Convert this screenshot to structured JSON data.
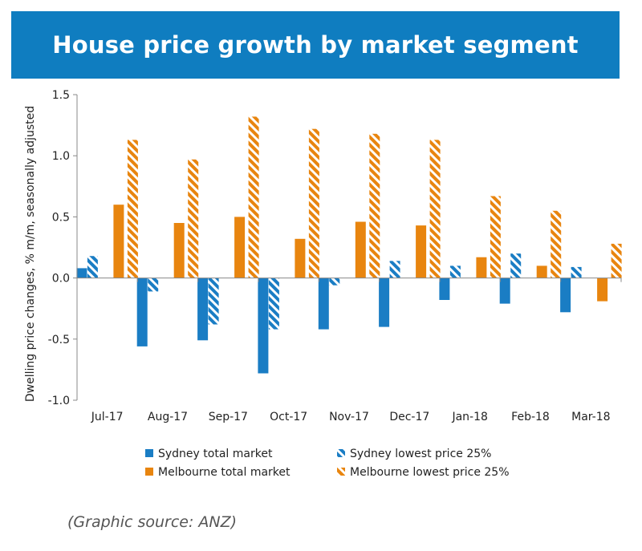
{
  "chart_data": {
    "type": "bar",
    "title": "House price growth by market segment",
    "ylabel": "Dwelling price changes, % m/m, seasonally adjusted",
    "xlabel": "",
    "ylim": [
      -1.0,
      1.5
    ],
    "yticks": [
      1.5,
      1.0,
      0.5,
      0.0,
      -0.5,
      -1.0
    ],
    "ytick_labels": [
      "1.5",
      "1.0",
      "0.5",
      "0.0",
      "-0.5",
      "-1.0"
    ],
    "grid": false,
    "legend_position": "bottom",
    "categories": [
      "Jul-17",
      "Aug-17",
      "Sep-17",
      "Oct-17",
      "Nov-17",
      "Dec-17",
      "Jan-18",
      "Feb-18",
      "Mar-18"
    ],
    "series": [
      {
        "name": "Sydney total market",
        "color": "#1a7dc4",
        "pattern": "solid",
        "values": [
          0.08,
          -0.56,
          -0.51,
          -0.78,
          -0.42,
          -0.4,
          -0.18,
          -0.21,
          -0.28
        ]
      },
      {
        "name": "Sydney lowest price 25%",
        "color": "#1a7dc4",
        "pattern": "hatched",
        "values": [
          0.18,
          -0.11,
          -0.38,
          -0.42,
          -0.06,
          0.14,
          0.1,
          0.2,
          0.09
        ]
      },
      {
        "name": "Melbourne total market",
        "color": "#e8850f",
        "pattern": "solid",
        "values": [
          0.6,
          0.45,
          0.5,
          0.32,
          0.46,
          0.43,
          0.17,
          0.1,
          -0.19
        ]
      },
      {
        "name": "Melbourne lowest price 25%",
        "color": "#e8850f",
        "pattern": "hatched",
        "values": [
          1.13,
          0.97,
          1.32,
          1.22,
          1.18,
          1.13,
          0.67,
          0.55,
          0.28
        ]
      }
    ]
  },
  "source_note": "(Graphic source: ANZ)"
}
